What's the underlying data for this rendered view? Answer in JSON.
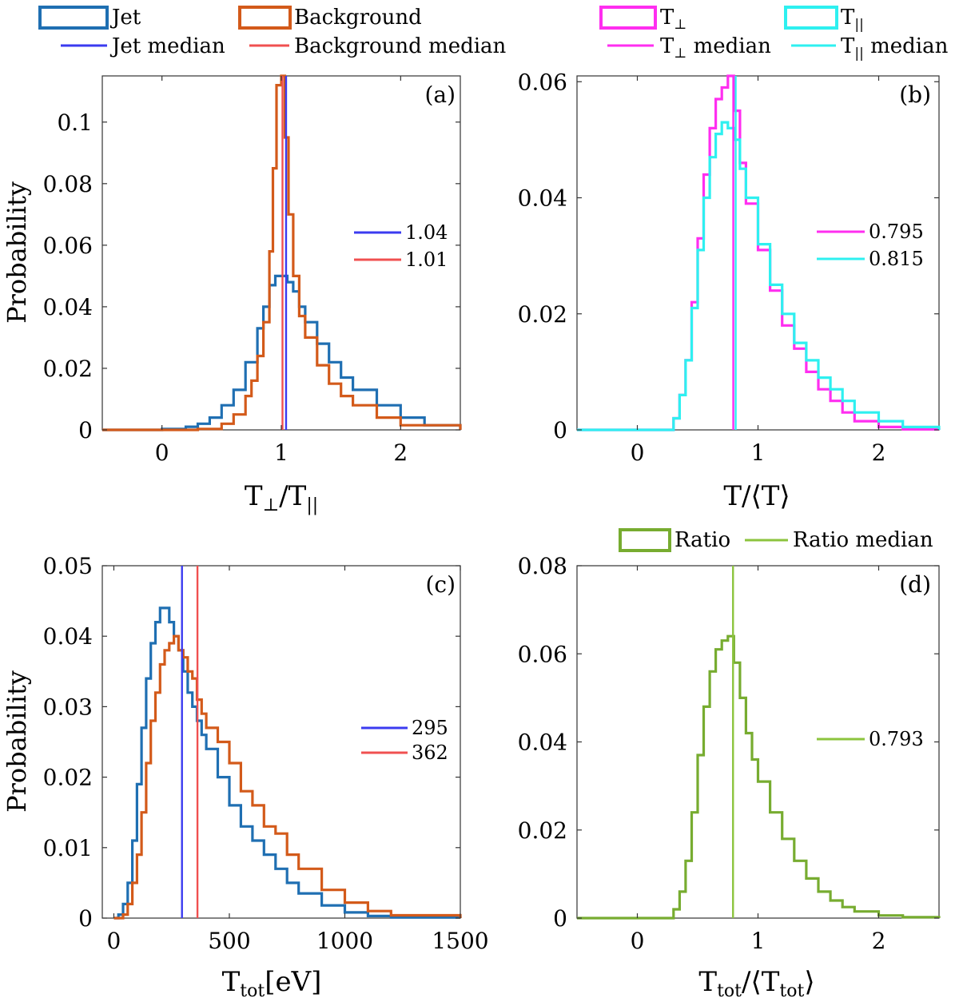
{
  "chart_data": [
    {
      "id": "a",
      "type": "histogram",
      "panel_label": "(a)",
      "xlabel_main": "T",
      "xlabel_sub1": "⊥",
      "xlabel_mid": "/T",
      "xlabel_sub2": "||",
      "ylabel": "Probability",
      "xlim": [
        -0.5,
        2.5
      ],
      "ylim": [
        0,
        0.115
      ],
      "xticks": [
        0,
        1,
        2
      ],
      "xtick_labels": [
        "0",
        "1",
        "2"
      ],
      "yticks": [
        0,
        0.02,
        0.04,
        0.06,
        0.08,
        0.1
      ],
      "ytick_labels": [
        "0",
        "0.02",
        "0.04",
        "0.06",
        "0.08",
        "0.1"
      ],
      "legend": {
        "entries": [
          {
            "label": "Jet",
            "kind": "box",
            "color": "#1f6fb2"
          },
          {
            "label": "Background",
            "kind": "box",
            "color": "#d35a1a"
          },
          {
            "label": "Jet median",
            "kind": "line",
            "color": "#3b3bf0"
          },
          {
            "label": "Background median",
            "kind": "line",
            "color": "#f05050"
          }
        ]
      },
      "median_labels": [
        "1.04",
        "1.01"
      ],
      "medians": [
        {
          "name": "Jet median",
          "value": 1.04,
          "color": "#3b3bf0"
        },
        {
          "name": "Background median",
          "value": 1.01,
          "color": "#f05050"
        }
      ],
      "series": [
        {
          "name": "Jet",
          "color": "#1f6fb2",
          "x": [
            -0.5,
            0.0,
            0.2,
            0.3,
            0.4,
            0.5,
            0.6,
            0.7,
            0.8,
            0.85,
            0.9,
            0.95,
            1.0,
            1.05,
            1.1,
            1.15,
            1.2,
            1.3,
            1.4,
            1.5,
            1.6,
            1.8,
            2.0,
            2.2,
            2.5
          ],
          "y": [
            0,
            0.0003,
            0.001,
            0.002,
            0.004,
            0.008,
            0.013,
            0.022,
            0.033,
            0.04,
            0.047,
            0.05,
            0.05,
            0.048,
            0.045,
            0.04,
            0.035,
            0.028,
            0.022,
            0.017,
            0.013,
            0.008,
            0.004,
            0.0015,
            0
          ]
        },
        {
          "name": "Background",
          "color": "#d35a1a",
          "x": [
            -0.5,
            0.3,
            0.5,
            0.6,
            0.7,
            0.75,
            0.8,
            0.85,
            0.9,
            0.93,
            0.96,
            1.0,
            1.03,
            1.06,
            1.1,
            1.15,
            1.2,
            1.3,
            1.4,
            1.5,
            1.6,
            1.8,
            2.0,
            2.5
          ],
          "y": [
            0,
            0.0003,
            0.002,
            0.005,
            0.011,
            0.016,
            0.024,
            0.035,
            0.058,
            0.085,
            0.112,
            0.115,
            0.095,
            0.07,
            0.05,
            0.037,
            0.03,
            0.021,
            0.015,
            0.011,
            0.008,
            0.004,
            0.0015,
            0
          ]
        }
      ]
    },
    {
      "id": "b",
      "type": "histogram",
      "panel_label": "(b)",
      "xlabel_text": "T/⟨T⟩",
      "xlim": [
        -0.5,
        2.5
      ],
      "ylim": [
        0,
        0.061
      ],
      "xticks": [
        0,
        1,
        2
      ],
      "xtick_labels": [
        "0",
        "1",
        "2"
      ],
      "yticks": [
        0,
        0.02,
        0.04,
        0.06
      ],
      "ytick_labels": [
        "0",
        "0.02",
        "0.04",
        "0.06"
      ],
      "legend": {
        "entries": [
          {
            "label": "T",
            "sub": "⊥",
            "kind": "box",
            "color": "#ff2ef0"
          },
          {
            "label": "T",
            "sub": "||",
            "kind": "box",
            "color": "#2ef0f0"
          },
          {
            "label": "T",
            "sub": "⊥",
            "tail": " median",
            "kind": "line",
            "color": "#ff2ef0"
          },
          {
            "label": "T",
            "sub": "||",
            "tail": " median",
            "kind": "line",
            "color": "#2ef0f0"
          }
        ]
      },
      "median_labels": [
        "0.795",
        "0.815"
      ],
      "medians": [
        {
          "name": "T⊥ median",
          "value": 0.795,
          "color": "#ff2ef0"
        },
        {
          "name": "T|| median",
          "value": 0.815,
          "color": "#2ef0f0"
        }
      ],
      "series": [
        {
          "name": "T⊥",
          "color": "#ff2ef0",
          "x": [
            -0.5,
            0.2,
            0.3,
            0.35,
            0.4,
            0.45,
            0.5,
            0.55,
            0.6,
            0.65,
            0.7,
            0.75,
            0.8,
            0.85,
            0.9,
            1.0,
            1.1,
            1.2,
            1.3,
            1.4,
            1.5,
            1.6,
            1.7,
            1.8,
            2.0,
            2.2,
            2.5
          ],
          "y": [
            0,
            0,
            0.002,
            0.006,
            0.012,
            0.022,
            0.033,
            0.044,
            0.052,
            0.057,
            0.059,
            0.061,
            0.055,
            0.046,
            0.039,
            0.031,
            0.024,
            0.018,
            0.014,
            0.01,
            0.007,
            0.005,
            0.003,
            0.0015,
            0.0005,
            0.0001,
            0
          ]
        },
        {
          "name": "T||",
          "color": "#2ef0f0",
          "x": [
            -0.5,
            0.2,
            0.3,
            0.35,
            0.4,
            0.45,
            0.5,
            0.55,
            0.6,
            0.65,
            0.7,
            0.75,
            0.8,
            0.85,
            0.9,
            1.0,
            1.1,
            1.2,
            1.3,
            1.4,
            1.5,
            1.6,
            1.7,
            1.8,
            2.0,
            2.2,
            2.5
          ],
          "y": [
            0,
            0,
            0.002,
            0.006,
            0.012,
            0.021,
            0.031,
            0.04,
            0.047,
            0.051,
            0.053,
            0.052,
            0.05,
            0.045,
            0.04,
            0.032,
            0.025,
            0.02,
            0.015,
            0.012,
            0.009,
            0.007,
            0.005,
            0.003,
            0.0015,
            0.0005,
            0
          ]
        }
      ]
    },
    {
      "id": "c",
      "type": "histogram",
      "panel_label": "(c)",
      "xlabel_main": "T",
      "xlabel_sub": "tot",
      "xlabel_tail": "[eV]",
      "ylabel": "Probability",
      "xlim": [
        -50,
        1500
      ],
      "ylim": [
        0,
        0.05
      ],
      "xticks": [
        0,
        500,
        1000,
        1500
      ],
      "xtick_labels": [
        "0",
        "500",
        "1000",
        "1500"
      ],
      "yticks": [
        0,
        0.01,
        0.02,
        0.03,
        0.04,
        0.05
      ],
      "ytick_labels": [
        "0",
        "0.01",
        "0.02",
        "0.03",
        "0.04",
        "0.05"
      ],
      "median_labels": [
        "295",
        "362"
      ],
      "medians": [
        {
          "name": "Jet median",
          "value": 295,
          "color": "#3b3bf0"
        },
        {
          "name": "Background median",
          "value": 362,
          "color": "#f05050"
        }
      ],
      "series": [
        {
          "name": "Jet",
          "color": "#1f6fb2",
          "x": [
            0,
            20,
            40,
            60,
            80,
            100,
            120,
            140,
            160,
            180,
            200,
            220,
            240,
            260,
            280,
            300,
            320,
            340,
            360,
            380,
            400,
            450,
            500,
            550,
            600,
            650,
            700,
            750,
            800,
            900,
            1000,
            1100,
            1200,
            1500
          ],
          "y": [
            0,
            0.0005,
            0.002,
            0.005,
            0.011,
            0.019,
            0.027,
            0.034,
            0.039,
            0.042,
            0.044,
            0.044,
            0.042,
            0.04,
            0.038,
            0.035,
            0.032,
            0.03,
            0.028,
            0.026,
            0.024,
            0.02,
            0.016,
            0.013,
            0.011,
            0.009,
            0.007,
            0.005,
            0.0035,
            0.0018,
            0.0008,
            0.0003,
            0.0001,
            0
          ]
        },
        {
          "name": "Background",
          "color": "#d35a1a",
          "x": [
            0,
            40,
            60,
            80,
            100,
            120,
            140,
            160,
            180,
            200,
            220,
            240,
            260,
            280,
            300,
            320,
            340,
            360,
            380,
            400,
            450,
            500,
            550,
            600,
            650,
            700,
            750,
            800,
            900,
            1000,
            1100,
            1200,
            1500
          ],
          "y": [
            0,
            0.0005,
            0.002,
            0.005,
            0.009,
            0.015,
            0.022,
            0.028,
            0.032,
            0.036,
            0.038,
            0.039,
            0.04,
            0.038,
            0.037,
            0.035,
            0.034,
            0.031,
            0.029,
            0.027,
            0.025,
            0.022,
            0.018,
            0.016,
            0.013,
            0.012,
            0.009,
            0.007,
            0.004,
            0.0022,
            0.001,
            0.0004,
            0
          ]
        }
      ]
    },
    {
      "id": "d",
      "type": "histogram",
      "panel_label": "(d)",
      "xlabel_main": "T",
      "xlabel_sub": "tot",
      "xlabel_mid": "/⟨T",
      "xlabel_sub2": "tot",
      "xlabel_tail": "⟩",
      "xlim": [
        -0.5,
        2.5
      ],
      "ylim": [
        0,
        0.08
      ],
      "xticks": [
        0,
        1,
        2
      ],
      "xtick_labels": [
        "0",
        "1",
        "2"
      ],
      "yticks": [
        0,
        0.02,
        0.04,
        0.06,
        0.08
      ],
      "ytick_labels": [
        "0",
        "0.02",
        "0.04",
        "0.06",
        "0.08"
      ],
      "legend": {
        "entries": [
          {
            "label": "Ratio",
            "kind": "box",
            "color": "#77ac30"
          },
          {
            "label": "Ratio median",
            "kind": "line",
            "color": "#8cc43e"
          }
        ]
      },
      "median_labels": [
        "0.793"
      ],
      "medians": [
        {
          "name": "Ratio median",
          "value": 0.793,
          "color": "#8cc43e"
        }
      ],
      "series": [
        {
          "name": "Ratio",
          "color": "#77ac30",
          "x": [
            -0.5,
            0.2,
            0.3,
            0.35,
            0.4,
            0.45,
            0.5,
            0.55,
            0.6,
            0.65,
            0.7,
            0.75,
            0.8,
            0.85,
            0.9,
            0.95,
            1.0,
            1.1,
            1.2,
            1.3,
            1.4,
            1.5,
            1.6,
            1.7,
            1.8,
            2.0,
            2.2,
            2.5
          ],
          "y": [
            0,
            0,
            0.002,
            0.006,
            0.013,
            0.024,
            0.037,
            0.048,
            0.056,
            0.061,
            0.063,
            0.064,
            0.058,
            0.05,
            0.042,
            0.036,
            0.031,
            0.024,
            0.018,
            0.013,
            0.009,
            0.006,
            0.004,
            0.0025,
            0.0015,
            0.0006,
            0.0002,
            0
          ]
        }
      ]
    }
  ]
}
